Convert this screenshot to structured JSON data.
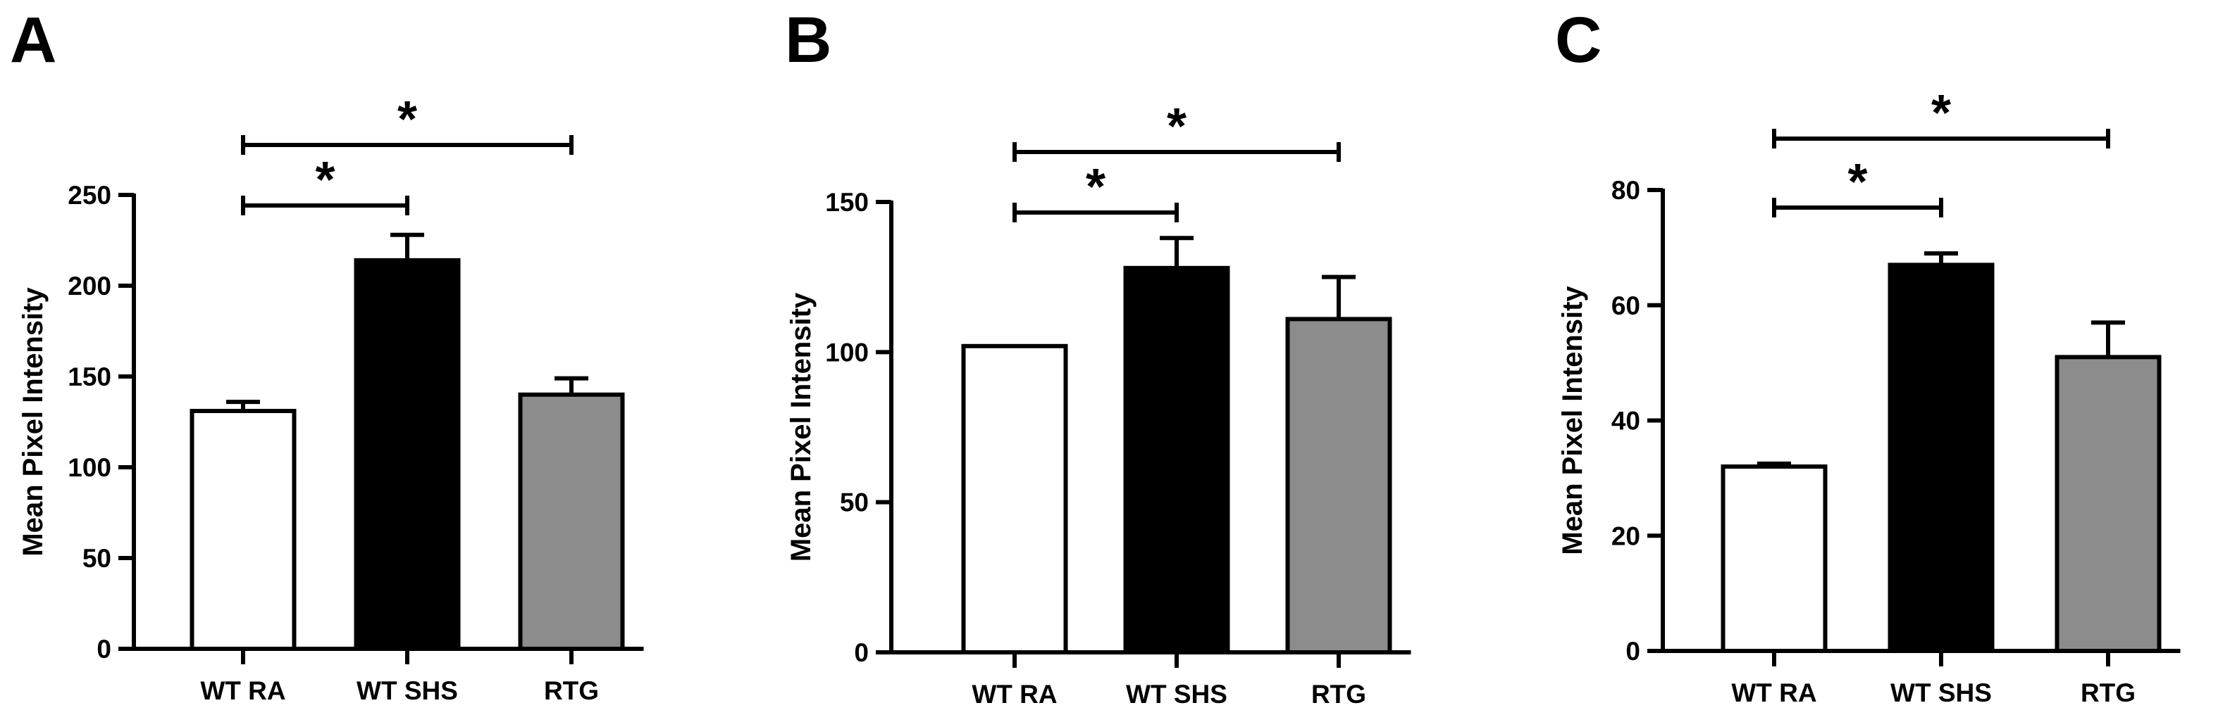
{
  "colors": {
    "axis": "#000000",
    "bar_white": "#ffffff",
    "bar_black": "#000000",
    "bar_gray": "#8c8c8c"
  },
  "chart_data": [
    {
      "panel": "A",
      "type": "bar",
      "categories": [
        "WT RA",
        "WT SHS",
        "RTG"
      ],
      "values": [
        131,
        214,
        140
      ],
      "errors": [
        5,
        14,
        9
      ],
      "bar_colors": [
        "#ffffff",
        "#000000",
        "#8c8c8c"
      ],
      "ylabel": "Mean Pixel Intensity",
      "ylim": [
        0,
        250
      ],
      "yticks": [
        0,
        50,
        100,
        150,
        200,
        250
      ],
      "significance": [
        {
          "from": 0,
          "to": 1,
          "label": "*"
        },
        {
          "from": 0,
          "to": 2,
          "label": "*"
        }
      ]
    },
    {
      "panel": "B",
      "type": "bar",
      "categories": [
        "WT RA",
        "WT SHS",
        "RTG"
      ],
      "values": [
        102,
        128,
        111
      ],
      "errors": [
        0,
        10,
        14
      ],
      "bar_colors": [
        "#ffffff",
        "#000000",
        "#8c8c8c"
      ],
      "ylabel": "Mean Pixel Intensity",
      "ylim": [
        0,
        150
      ],
      "yticks": [
        0,
        50,
        100,
        150
      ],
      "significance": [
        {
          "from": 0,
          "to": 1,
          "label": "*"
        },
        {
          "from": 0,
          "to": 2,
          "label": "*"
        }
      ]
    },
    {
      "panel": "C",
      "type": "bar",
      "categories": [
        "WT RA",
        "WT SHS",
        "RTG"
      ],
      "values": [
        32,
        67,
        51
      ],
      "errors": [
        0.5,
        2,
        6
      ],
      "bar_colors": [
        "#ffffff",
        "#000000",
        "#8c8c8c"
      ],
      "ylabel": "Mean Pixel Intensity",
      "ylim": [
        0,
        80
      ],
      "yticks": [
        0,
        20,
        40,
        60,
        80
      ],
      "significance": [
        {
          "from": 0,
          "to": 1,
          "label": "*"
        },
        {
          "from": 0,
          "to": 2,
          "label": "*"
        }
      ]
    }
  ]
}
